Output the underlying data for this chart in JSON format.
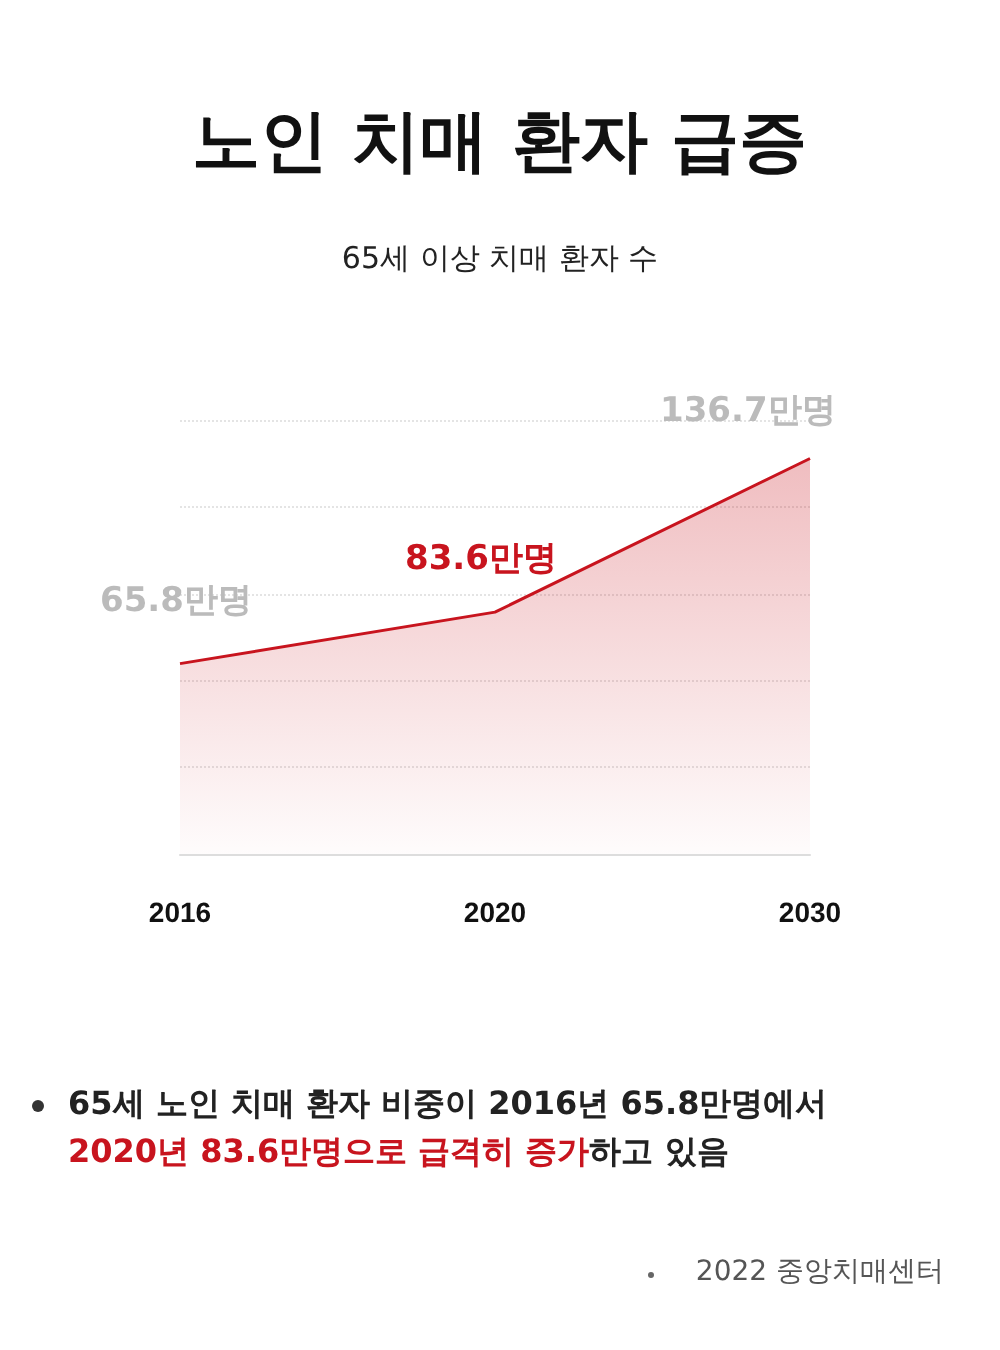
{
  "chart_data": {
    "type": "area",
    "title": "노인 치매 환자 급증",
    "subtitle": "65세 이상 치매 환자 수",
    "categories": [
      "2016",
      "2020",
      "2030"
    ],
    "series": [
      {
        "color": "#c8141e",
        "values": [
          65.8,
          83.6,
          136.7
        ],
        "value_labels": [
          "65.8만명",
          "83.6만명",
          "136.7만명"
        ],
        "colors": [
          "#bbbbbb",
          "#c8141e",
          "#bbbbbb"
        ]
      }
    ],
    "grid": "y",
    "marker": "none",
    "tick_labels": "x",
    "annotations": [
      "65세 노인 치매 환자 비중이 2016년 65.8만명에서",
      "2020년 83.6만명으로 급격히 증가",
      "하고 있음",
      "2022 중앙치매센터"
    ]
  }
}
